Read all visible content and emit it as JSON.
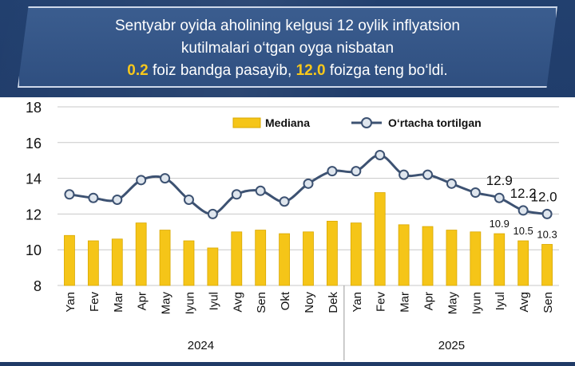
{
  "header": {
    "line1": "Sentyabr oyida aholining kelgusi 12 oylik inflyatsion",
    "line2": "kutilmalari o‘tgan oyga nisbatan",
    "line3_value1": "0.2",
    "line3_mid": " foiz bandga pasayib, ",
    "line3_value2": "12.0",
    "line3_end": " foizga teng bo‘ldi."
  },
  "colors": {
    "bar": "#f5c518",
    "bar_edge": "#d9a800",
    "line": "#3d5272",
    "marker_fill": "#dfe6ee",
    "grid": "#c8c8c8",
    "highlight": "#f7c71b"
  },
  "chart_data": {
    "type": "bar+line",
    "ylim": [
      8,
      18
    ],
    "yticks": [
      "8",
      "10",
      "12",
      "14",
      "16",
      "18"
    ],
    "categories": [
      "Yan",
      "Fev",
      "Mar",
      "Apr",
      "May",
      "Iyun",
      "Iyul",
      "Avg",
      "Sen",
      "Okt",
      "Noy",
      "Dek",
      "Yan",
      "Fev",
      "Mar",
      "Apr",
      "May",
      "Iyun",
      "Iyul",
      "Avg",
      "Sen"
    ],
    "years": [
      {
        "label": "2024",
        "from": 0,
        "to": 11
      },
      {
        "label": "2025",
        "from": 12,
        "to": 20
      }
    ],
    "legend": {
      "bar": "Mediana",
      "line": "O‘rtacha tortilgan",
      "position": "top"
    },
    "series": [
      {
        "name": "Mediana",
        "kind": "bar",
        "values": [
          10.8,
          10.5,
          10.6,
          11.5,
          11.1,
          10.5,
          10.1,
          11.0,
          11.1,
          10.9,
          11.0,
          11.6,
          11.5,
          13.2,
          11.4,
          11.3,
          11.1,
          11.0,
          10.9,
          10.5,
          10.3
        ]
      },
      {
        "name": "O‘rtacha tortilgan",
        "kind": "line",
        "values": [
          13.1,
          12.9,
          12.8,
          13.9,
          14.0,
          12.8,
          12.0,
          13.1,
          13.3,
          12.7,
          13.7,
          14.4,
          14.4,
          15.3,
          14.2,
          14.2,
          13.7,
          13.2,
          12.9,
          12.2,
          12.0
        ]
      }
    ],
    "labels": {
      "bar": [
        {
          "i": 18,
          "text": "10.9"
        },
        {
          "i": 19,
          "text": "10.5"
        },
        {
          "i": 20,
          "text": "10.3"
        }
      ],
      "line": [
        {
          "i": 18,
          "text": "12.9"
        },
        {
          "i": 19,
          "text": "12.2"
        },
        {
          "i": 20,
          "text": "12.0"
        }
      ]
    }
  }
}
